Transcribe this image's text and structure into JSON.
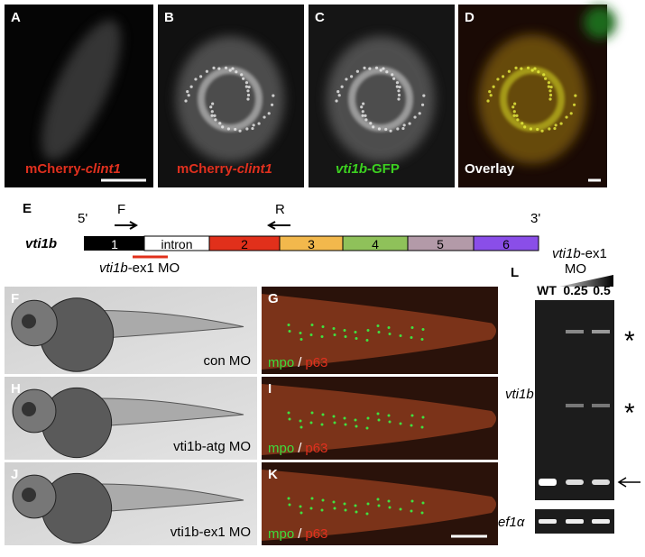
{
  "panels_top": [
    {
      "label": "A",
      "caption": [
        "mCherry-",
        "clint1"
      ]
    },
    {
      "label": "B",
      "caption": [
        "mCherry-",
        "clint1"
      ]
    },
    {
      "label": "C",
      "caption": [
        "vti1b",
        "-GFP"
      ]
    },
    {
      "label": "D",
      "caption": [
        "Overlay"
      ]
    }
  ],
  "gene": {
    "label": "E",
    "name": "vti1b",
    "five_prime": "5'",
    "three_prime": "3'",
    "forward": "F",
    "reverse": "R",
    "segments": [
      "1",
      "intron",
      "2",
      "3",
      "4",
      "5",
      "6"
    ],
    "morpholino": [
      "vti1b",
      "-ex1 MO"
    ]
  },
  "embryos": [
    {
      "label": "F",
      "caption": "con MO"
    },
    {
      "label": "H",
      "caption": "vti1b-atg MO"
    },
    {
      "label": "J",
      "caption": "vti1b-ex1 MO"
    }
  ],
  "stains": [
    {
      "label": "G",
      "markers": [
        "mpo",
        "/",
        "p63"
      ]
    },
    {
      "label": "I",
      "markers": [
        "mpo",
        "/",
        "p63"
      ]
    },
    {
      "label": "K",
      "markers": [
        "mpo",
        "/",
        "p63"
      ]
    }
  ],
  "gel": {
    "label": "L",
    "treatment": [
      "vti1b",
      "-ex1"
    ],
    "morpholino": "MO",
    "lanes": [
      "WT",
      "0.25",
      "0.5"
    ],
    "bands": [
      "*",
      "*"
    ],
    "gene": "vti1b",
    "control": "ef1α"
  }
}
